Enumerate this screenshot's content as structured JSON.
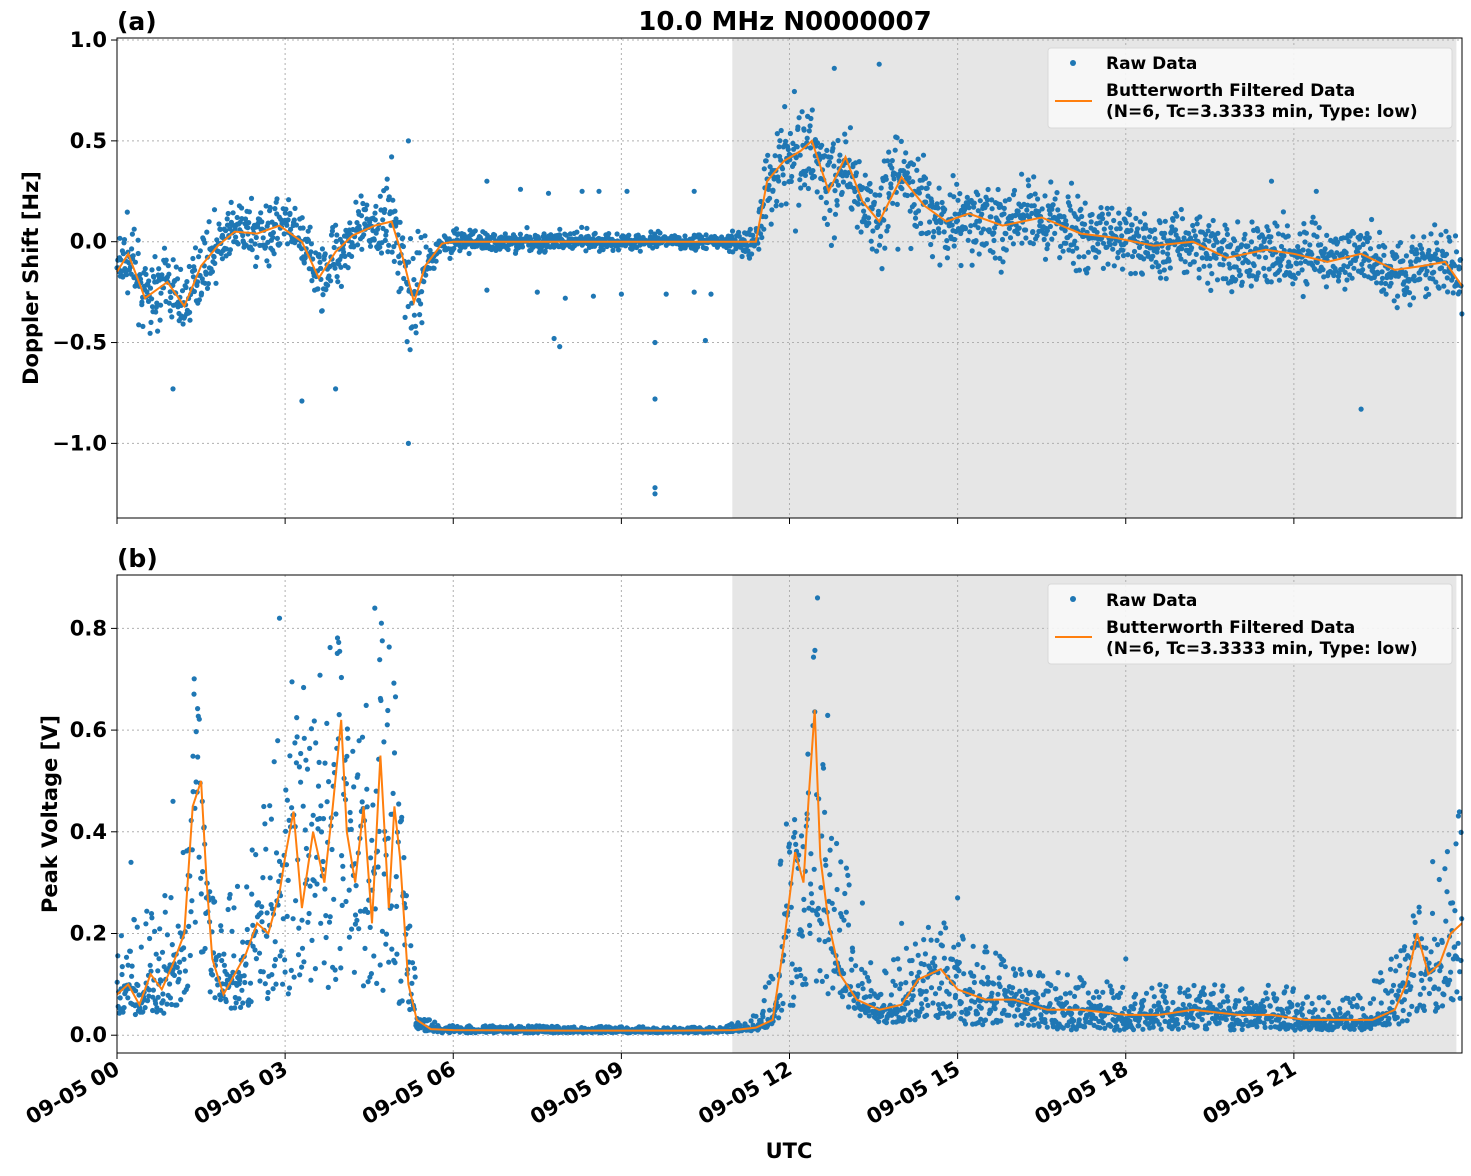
{
  "chart_data": [
    {
      "type": "scatter",
      "panel_label": "(a)",
      "title": "10.0 MHz N0000007",
      "xlabel": "",
      "ylabel": "Doppler Shift [Hz]",
      "xlim_hours": [
        0,
        24
      ],
      "ylim": [
        -1.37,
        1.01
      ],
      "yticks": [
        1.0,
        0.5,
        0.0,
        -0.5,
        -1.0
      ],
      "ytick_labels": [
        "1.0",
        "0.5",
        "0.0",
        "−0.5",
        "−1.0"
      ],
      "xticks_hours": [
        0,
        3,
        6,
        9,
        12,
        15,
        18,
        21
      ],
      "night_shading_hours": [
        10.98,
        23.9
      ],
      "legend": {
        "raw": "Raw Data",
        "filtered_line1": "Butterworth Filtered Data",
        "filtered_line2": "(N=6, Tc=3.3333 min, Type: low)",
        "placement": "top-right"
      },
      "series": [
        {
          "name": "Raw Data",
          "kind": "scatter",
          "color": "#1f77b4",
          "spread": [
            [
              0,
              0.16
            ],
            [
              2,
              0.14
            ],
            [
              4.5,
              0.16
            ],
            [
              5.2,
              0.34
            ],
            [
              5.6,
              0.06
            ],
            [
              10.8,
              0.03
            ],
            [
              11.4,
              0.12
            ],
            [
              12.0,
              0.28
            ],
            [
              13.5,
              0.24
            ],
            [
              16,
              0.17
            ],
            [
              24,
              0.16
            ]
          ]
        },
        {
          "name": "Butterworth Filtered Data",
          "kind": "line",
          "color": "#ff7f0e",
          "points": [
            [
              0,
              -0.15
            ],
            [
              0.2,
              -0.06
            ],
            [
              0.5,
              -0.28
            ],
            [
              0.9,
              -0.2
            ],
            [
              1.2,
              -0.32
            ],
            [
              1.5,
              -0.12
            ],
            [
              1.8,
              -0.02
            ],
            [
              2.1,
              0.05
            ],
            [
              2.5,
              0.04
            ],
            [
              2.9,
              0.08
            ],
            [
              3.3,
              0.0
            ],
            [
              3.6,
              -0.18
            ],
            [
              3.9,
              -0.05
            ],
            [
              4.2,
              0.03
            ],
            [
              4.6,
              0.08
            ],
            [
              4.9,
              0.1
            ],
            [
              5.1,
              -0.08
            ],
            [
              5.3,
              -0.3
            ],
            [
              5.5,
              -0.12
            ],
            [
              5.8,
              -0.01
            ],
            [
              6.0,
              0.0
            ],
            [
              8.0,
              0.0
            ],
            [
              10.0,
              0.0
            ],
            [
              11.4,
              0.0
            ],
            [
              11.6,
              0.3
            ],
            [
              11.9,
              0.4
            ],
            [
              12.2,
              0.45
            ],
            [
              12.4,
              0.5
            ],
            [
              12.7,
              0.25
            ],
            [
              13.0,
              0.42
            ],
            [
              13.3,
              0.2
            ],
            [
              13.6,
              0.1
            ],
            [
              14.0,
              0.32
            ],
            [
              14.4,
              0.18
            ],
            [
              14.8,
              0.1
            ],
            [
              15.2,
              0.14
            ],
            [
              15.8,
              0.08
            ],
            [
              16.5,
              0.12
            ],
            [
              17.2,
              0.04
            ],
            [
              17.8,
              0.02
            ],
            [
              18.5,
              -0.02
            ],
            [
              19.2,
              0.0
            ],
            [
              19.8,
              -0.08
            ],
            [
              20.5,
              -0.04
            ],
            [
              21.0,
              -0.06
            ],
            [
              21.6,
              -0.1
            ],
            [
              22.2,
              -0.06
            ],
            [
              22.8,
              -0.14
            ],
            [
              23.3,
              -0.12
            ],
            [
              23.7,
              -0.1
            ],
            [
              24,
              -0.22
            ]
          ]
        }
      ],
      "outliers": [
        [
          5.2,
          -1.0
        ],
        [
          5.2,
          0.5
        ],
        [
          9.6,
          -1.25
        ],
        [
          9.6,
          -1.22
        ],
        [
          9.6,
          -0.78
        ],
        [
          9.6,
          -0.5
        ],
        [
          3.3,
          -0.79
        ],
        [
          3.9,
          -0.73
        ],
        [
          22.2,
          -0.83
        ],
        [
          13.6,
          0.88
        ],
        [
          12.8,
          0.86
        ],
        [
          1.0,
          -0.73
        ],
        [
          6.6,
          0.3
        ],
        [
          7.2,
          0.26
        ],
        [
          7.7,
          0.24
        ],
        [
          8.3,
          0.25
        ],
        [
          8.6,
          0.25
        ],
        [
          9.1,
          0.25
        ],
        [
          10.3,
          0.25
        ],
        [
          6.6,
          -0.24
        ],
        [
          7.5,
          -0.25
        ],
        [
          8.0,
          -0.28
        ],
        [
          8.5,
          -0.27
        ],
        [
          9.0,
          -0.26
        ],
        [
          9.8,
          -0.26
        ],
        [
          10.3,
          -0.25
        ],
        [
          10.6,
          -0.26
        ],
        [
          7.8,
          -0.48
        ],
        [
          7.9,
          -0.52
        ],
        [
          10.5,
          -0.49
        ],
        [
          20.6,
          0.3
        ],
        [
          21.4,
          0.25
        ]
      ]
    },
    {
      "type": "scatter",
      "panel_label": "(b)",
      "title": "",
      "xlabel": "UTC",
      "ylabel": "Peak Voltage [V]",
      "xlim_hours": [
        0,
        24
      ],
      "ylim": [
        -0.035,
        0.905
      ],
      "yticks": [
        0.8,
        0.6,
        0.4,
        0.2,
        0.0
      ],
      "ytick_labels": [
        "0.8",
        "0.6",
        "0.4",
        "0.2",
        "0.0"
      ],
      "xticks_hours": [
        0,
        3,
        6,
        9,
        12,
        15,
        18,
        21
      ],
      "xtick_labels": [
        "09-05 00",
        "09-05 03",
        "09-05 06",
        "09-05 09",
        "09-05 12",
        "09-05 15",
        "09-05 18",
        "09-05 21"
      ],
      "night_shading_hours": [
        10.98,
        23.9
      ],
      "legend": {
        "raw": "Raw Data",
        "filtered_line1": "Butterworth Filtered Data",
        "filtered_line2": "(N=6, Tc=3.3333 min, Type: low)",
        "placement": "top-right"
      },
      "series": [
        {
          "name": "Raw Data",
          "kind": "scatter",
          "color": "#1f77b4",
          "envelope": [
            [
              0,
              0.04,
              0.22
            ],
            [
              0.8,
              0.04,
              0.28
            ],
            [
              1.3,
              0.06,
              0.4
            ],
            [
              1.4,
              0.2,
              0.8
            ],
            [
              1.6,
              0.08,
              0.3
            ],
            [
              2.0,
              0.04,
              0.28
            ],
            [
              2.5,
              0.06,
              0.4
            ],
            [
              3.0,
              0.08,
              0.7
            ],
            [
              3.5,
              0.06,
              0.68
            ],
            [
              3.9,
              0.1,
              0.84
            ],
            [
              4.2,
              0.08,
              0.6
            ],
            [
              4.6,
              0.1,
              0.82
            ],
            [
              4.9,
              0.06,
              0.8
            ],
            [
              5.2,
              0.02,
              0.25
            ],
            [
              5.4,
              0.01,
              0.04
            ],
            [
              5.8,
              0.005,
              0.02
            ],
            [
              10.8,
              0.005,
              0.015
            ],
            [
              11.5,
              0.01,
              0.05
            ],
            [
              11.9,
              0.03,
              0.4
            ],
            [
              12.3,
              0.1,
              0.6
            ],
            [
              12.5,
              0.1,
              0.86
            ],
            [
              12.8,
              0.06,
              0.5
            ],
            [
              13.2,
              0.04,
              0.2
            ],
            [
              13.6,
              0.02,
              0.12
            ],
            [
              14.2,
              0.03,
              0.2
            ],
            [
              14.6,
              0.03,
              0.24
            ],
            [
              15.2,
              0.02,
              0.2
            ],
            [
              16.0,
              0.02,
              0.14
            ],
            [
              17.0,
              0.01,
              0.12
            ],
            [
              18.0,
              0.01,
              0.1
            ],
            [
              19.5,
              0.01,
              0.1
            ],
            [
              21.0,
              0.01,
              0.1
            ],
            [
              22.2,
              0.01,
              0.08
            ],
            [
              22.8,
              0.02,
              0.16
            ],
            [
              23.2,
              0.03,
              0.3
            ],
            [
              23.6,
              0.05,
              0.36
            ],
            [
              24,
              0.06,
              0.45
            ]
          ]
        },
        {
          "name": "Butterworth Filtered Data",
          "kind": "line",
          "color": "#ff7f0e",
          "points": [
            [
              0,
              0.08
            ],
            [
              0.2,
              0.1
            ],
            [
              0.4,
              0.06
            ],
            [
              0.6,
              0.12
            ],
            [
              0.8,
              0.09
            ],
            [
              1.0,
              0.14
            ],
            [
              1.2,
              0.2
            ],
            [
              1.35,
              0.45
            ],
            [
              1.5,
              0.5
            ],
            [
              1.6,
              0.3
            ],
            [
              1.7,
              0.15
            ],
            [
              1.9,
              0.08
            ],
            [
              2.1,
              0.12
            ],
            [
              2.3,
              0.16
            ],
            [
              2.5,
              0.22
            ],
            [
              2.7,
              0.2
            ],
            [
              2.9,
              0.28
            ],
            [
              3.0,
              0.35
            ],
            [
              3.15,
              0.44
            ],
            [
              3.3,
              0.25
            ],
            [
              3.5,
              0.4
            ],
            [
              3.7,
              0.3
            ],
            [
              3.85,
              0.45
            ],
            [
              4.0,
              0.62
            ],
            [
              4.1,
              0.4
            ],
            [
              4.25,
              0.3
            ],
            [
              4.4,
              0.45
            ],
            [
              4.55,
              0.22
            ],
            [
              4.7,
              0.55
            ],
            [
              4.85,
              0.25
            ],
            [
              4.95,
              0.45
            ],
            [
              5.05,
              0.35
            ],
            [
              5.2,
              0.1
            ],
            [
              5.35,
              0.03
            ],
            [
              5.6,
              0.012
            ],
            [
              6.0,
              0.01
            ],
            [
              8.0,
              0.009
            ],
            [
              10.0,
              0.009
            ],
            [
              11.0,
              0.01
            ],
            [
              11.4,
              0.015
            ],
            [
              11.7,
              0.03
            ],
            [
              11.9,
              0.18
            ],
            [
              12.1,
              0.36
            ],
            [
              12.25,
              0.3
            ],
            [
              12.35,
              0.48
            ],
            [
              12.45,
              0.64
            ],
            [
              12.55,
              0.35
            ],
            [
              12.7,
              0.22
            ],
            [
              12.9,
              0.12
            ],
            [
              13.2,
              0.07
            ],
            [
              13.6,
              0.05
            ],
            [
              14.0,
              0.06
            ],
            [
              14.3,
              0.11
            ],
            [
              14.7,
              0.13
            ],
            [
              15.0,
              0.09
            ],
            [
              15.5,
              0.07
            ],
            [
              16.0,
              0.07
            ],
            [
              16.6,
              0.05
            ],
            [
              17.2,
              0.05
            ],
            [
              18.0,
              0.04
            ],
            [
              18.6,
              0.04
            ],
            [
              19.2,
              0.05
            ],
            [
              20.0,
              0.04
            ],
            [
              20.6,
              0.04
            ],
            [
              21.2,
              0.03
            ],
            [
              21.8,
              0.03
            ],
            [
              22.4,
              0.03
            ],
            [
              22.8,
              0.05
            ],
            [
              23.0,
              0.1
            ],
            [
              23.2,
              0.2
            ],
            [
              23.4,
              0.12
            ],
            [
              23.6,
              0.14
            ],
            [
              23.8,
              0.2
            ],
            [
              24,
              0.22
            ]
          ]
        }
      ],
      "outliers": [
        [
          0.25,
          0.34
        ],
        [
          1.0,
          0.46
        ],
        [
          2.9,
          0.82
        ],
        [
          4.6,
          0.84
        ],
        [
          12.5,
          0.86
        ],
        [
          13.3,
          0.26
        ],
        [
          14.0,
          0.22
        ],
        [
          15.0,
          0.27
        ],
        [
          18.0,
          0.15
        ]
      ]
    }
  ]
}
